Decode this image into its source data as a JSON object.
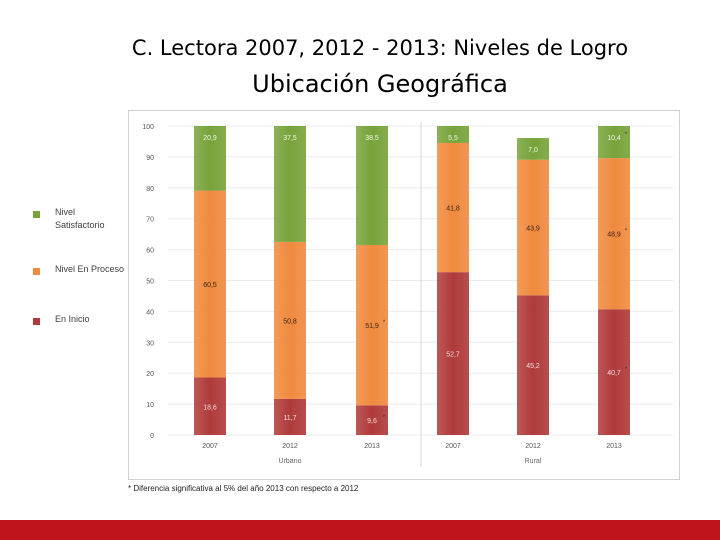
{
  "slide": {
    "title": "C. Lectora 2007, 2012 - 2013: Niveles de Logro",
    "subtitle": "Ubicación Geográfica",
    "footnote": "* Diferencia significativa al 5% del año 2013 con respecto a 2012"
  },
  "legend": [
    {
      "label": "Nivel Satisfactorio",
      "color": "#77a33a"
    },
    {
      "label": "Nivel En Proceso",
      "color": "#f08a3e"
    },
    {
      "label": "En Inicio",
      "color": "#b03a3a"
    }
  ],
  "colors": {
    "satisfactorio": "#77a33a",
    "proceso": "#f08a3e",
    "inicio": "#b03a3a",
    "footer": "#c0141c"
  },
  "chart_data": {
    "type": "bar",
    "stacked": true,
    "groups": [
      {
        "label": "Urbano",
        "categories": [
          "2007",
          "2012",
          "2013"
        ]
      },
      {
        "label": "Rural",
        "categories": [
          "2007",
          "2012",
          "2013"
        ]
      }
    ],
    "categories": [
      "2007",
      "2012",
      "2013",
      "2007",
      "2012",
      "2013"
    ],
    "series": [
      {
        "name": "En Inicio",
        "values": [
          18.6,
          11.7,
          9.6,
          52.7,
          45.2,
          40.7
        ],
        "labels": [
          "18,6",
          "11,7",
          "9,6",
          "52,7",
          "45,2",
          "40,7"
        ]
      },
      {
        "name": "Nivel En Proceso",
        "values": [
          60.5,
          50.8,
          51.9,
          41.8,
          43.9,
          48.9
        ],
        "labels": [
          "60,5",
          "50,8",
          "51,9",
          "41,8",
          "43,9",
          "48,9"
        ]
      },
      {
        "name": "Nivel Satisfactorio",
        "values": [
          20.9,
          37.5,
          38.5,
          5.5,
          7.0,
          10.4
        ],
        "labels": [
          "20,9",
          "37,5",
          "38,5",
          "5,5",
          "7,0",
          "10,4"
        ]
      }
    ],
    "significance_marks": [
      {
        "series": "En Inicio",
        "index": 2,
        "mark": "*"
      },
      {
        "series": "Nivel En Proceso",
        "index": 2,
        "mark": "*"
      },
      {
        "series": "En Inicio",
        "index": 5,
        "mark": "*"
      },
      {
        "series": "Nivel En Proceso",
        "index": 5,
        "mark": "*"
      },
      {
        "series": "Nivel Satisfactorio",
        "index": 5,
        "mark": "*"
      }
    ],
    "yticks": [
      "0",
      "10",
      "20",
      "30",
      "40",
      "50",
      "60",
      "70",
      "80",
      "90",
      "100"
    ],
    "ylim": [
      0,
      100
    ],
    "title": "",
    "xlabel": "",
    "ylabel": ""
  }
}
